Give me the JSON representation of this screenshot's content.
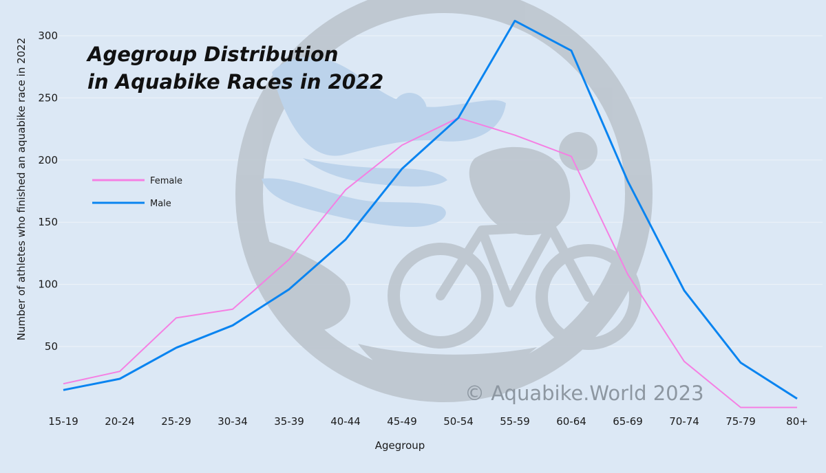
{
  "chart_data": {
    "type": "line",
    "title_lines": [
      "Agegroup Distribution",
      "in Aquabike Races in 2022"
    ],
    "xlabel": "Agegroup",
    "ylabel": "Number of athletes who finished an aquabike race in 2022",
    "categories": [
      "15-19",
      "20-24",
      "25-29",
      "30-34",
      "35-39",
      "40-44",
      "45-49",
      "50-54",
      "55-59",
      "60-64",
      "65-69",
      "70-74",
      "75-79",
      "80+"
    ],
    "y_ticks": [
      50,
      100,
      150,
      200,
      250,
      300
    ],
    "ylim": [
      0,
      320
    ],
    "grid": true,
    "legend_position": "left",
    "series": [
      {
        "name": "Female",
        "color": "#f57fe3",
        "values": [
          20,
          30,
          73,
          80,
          120,
          176,
          212,
          234,
          220,
          203,
          108,
          38,
          1,
          1
        ]
      },
      {
        "name": "Male",
        "color": "#0a84f0",
        "values": [
          15,
          24,
          49,
          67,
          96,
          136,
          193,
          234,
          312,
          288,
          183,
          95,
          37,
          8
        ]
      }
    ]
  },
  "watermark": {
    "text": "© Aquabike.World 2023",
    "logo_icon": "aquabike-logo-icon"
  }
}
